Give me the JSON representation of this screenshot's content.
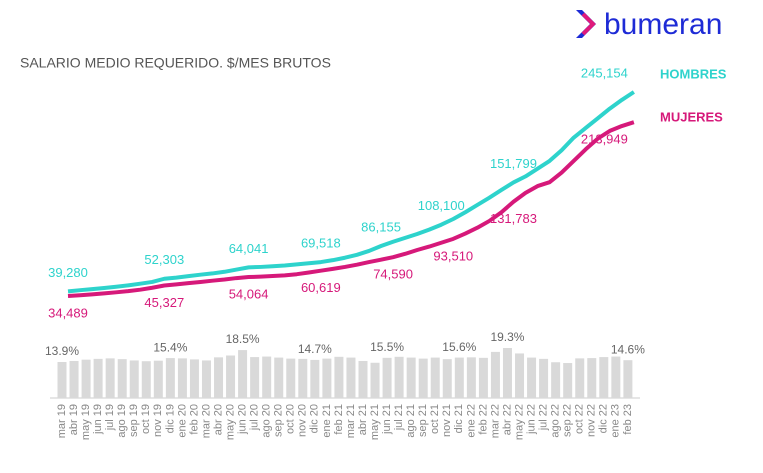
{
  "logo": "bumeran",
  "chart_data": [
    {
      "type": "line",
      "title": "SALARIO MEDIO REQUERIDO. $/MES BRUTOS",
      "series": [
        {
          "name": "HOMBRES",
          "color": "#2ed3cc",
          "values": [
            39280,
            40500,
            41600,
            42700,
            44000,
            45500,
            47200,
            49000,
            52303,
            53500,
            55000,
            56500,
            57800,
            59500,
            61800,
            64041,
            64500,
            65200,
            66000,
            67200,
            68300,
            69518,
            71500,
            74000,
            77000,
            81000,
            86155,
            90500,
            94500,
            98500,
            103000,
            108100,
            114000,
            121000,
            128500,
            136000,
            144000,
            151799,
            158000,
            166000,
            174000,
            185000,
            198000,
            208000,
            218000,
            228000,
            237000,
            245154
          ],
          "value_labels": [
            "39,280",
            null,
            null,
            null,
            null,
            null,
            null,
            null,
            "52,303",
            null,
            null,
            null,
            null,
            null,
            null,
            "64,041",
            null,
            null,
            null,
            null,
            null,
            "69,518",
            null,
            null,
            null,
            null,
            "86,155",
            null,
            null,
            null,
            null,
            "108,100",
            null,
            null,
            null,
            null,
            null,
            "151,799",
            null,
            null,
            null,
            null,
            null,
            null,
            null,
            null,
            null,
            "245,154"
          ]
        },
        {
          "name": "MUJERES",
          "color": "#d6197a",
          "values": [
            34489,
            35300,
            36200,
            37200,
            38300,
            39500,
            41000,
            43000,
            45327,
            46500,
            47800,
            49000,
            50300,
            51500,
            53000,
            54064,
            54500,
            55100,
            55800,
            57000,
            58800,
            60619,
            62500,
            64500,
            66800,
            69500,
            72000,
            74590,
            78000,
            82000,
            85500,
            89500,
            93510,
            99000,
            105000,
            112000,
            121000,
            131783,
            141000,
            148000,
            152000,
            162000,
            174000,
            186000,
            197000,
            205000,
            210000,
            213949
          ],
          "value_labels": [
            "34,489",
            null,
            null,
            null,
            null,
            null,
            null,
            null,
            "45,327",
            null,
            null,
            null,
            null,
            null,
            null,
            "54,064",
            null,
            null,
            null,
            null,
            null,
            "60,619",
            null,
            null,
            null,
            null,
            null,
            "74,590",
            null,
            null,
            null,
            null,
            "93,510",
            null,
            null,
            null,
            null,
            "131,783",
            null,
            null,
            null,
            null,
            null,
            null,
            null,
            null,
            null,
            "213,949"
          ]
        }
      ]
    },
    {
      "type": "bar",
      "color": "#d9d9d9",
      "categories": [
        "mar 19",
        "abr 19",
        "may 19",
        "jun 19",
        "jul 19",
        "ago 19",
        "sep 19",
        "oct 19",
        "nov 19",
        "dic 19",
        "ene 20",
        "feb 20",
        "mar 20",
        "abr 20",
        "may 20",
        "jun 20",
        "jul 20",
        "ago 20",
        "sep 20",
        "oct 20",
        "nov 20",
        "dic 20",
        "ene 21",
        "feb 21",
        "mar 21",
        "abr 21",
        "may 21",
        "jun 21",
        "jul 21",
        "ago 21",
        "sep 21",
        "oct 21",
        "nov 21",
        "dic 21",
        "ene 22",
        "feb 22",
        "mar 22",
        "abr 22",
        "may 22",
        "jun 22",
        "jul 22",
        "ago 22",
        "sep 22",
        "oct 22",
        "nov 22",
        "dic 22",
        "ene 23",
        "feb 23"
      ],
      "values": [
        13.9,
        14.3,
        14.8,
        15.1,
        15.3,
        15.0,
        14.5,
        14.2,
        14.4,
        15.4,
        15.3,
        14.9,
        14.5,
        15.7,
        16.4,
        18.5,
        15.8,
        16.0,
        15.6,
        15.2,
        15.1,
        14.7,
        15.2,
        15.9,
        15.6,
        14.3,
        13.6,
        15.5,
        15.9,
        15.6,
        15.2,
        15.6,
        15.0,
        15.6,
        15.7,
        15.5,
        17.8,
        19.3,
        17.2,
        15.6,
        15.1,
        13.8,
        13.5,
        15.3,
        15.4,
        15.8,
        16.0,
        14.6
      ],
      "value_labels": [
        "13.9%",
        null,
        null,
        null,
        null,
        null,
        null,
        null,
        null,
        "15.4%",
        null,
        null,
        null,
        null,
        null,
        "18.5%",
        null,
        null,
        null,
        null,
        null,
        "14.7%",
        null,
        null,
        null,
        null,
        null,
        "15.5%",
        null,
        null,
        null,
        null,
        null,
        "15.6%",
        null,
        null,
        null,
        "19.3%",
        null,
        null,
        null,
        null,
        null,
        null,
        null,
        null,
        null,
        "14.6%"
      ]
    }
  ]
}
